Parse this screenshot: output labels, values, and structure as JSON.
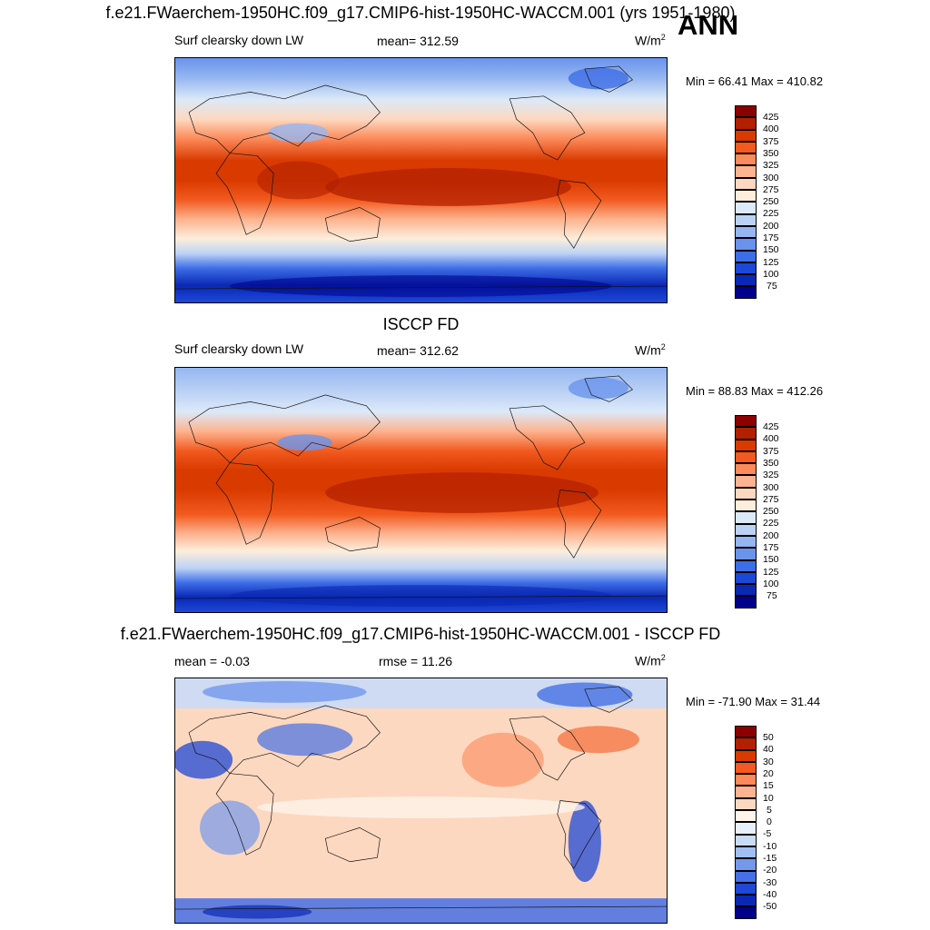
{
  "header": {
    "title": "f.e21.FWaerchem-1950HC.f09_g17.CMIP6-hist-1950HC-WACCM.001 (yrs 1951-1980)",
    "season": "ANN"
  },
  "panels": [
    {
      "title": "",
      "variable": "Surf clearsky down LW",
      "stat": "mean= 312.59",
      "units": "W/m",
      "units_sup": "2",
      "minmax": "Min =  66.41 Max = 410.82",
      "colorbar_labels": [
        "425",
        "400",
        "375",
        "350",
        "325",
        "300",
        "275",
        "250",
        "225",
        "200",
        "175",
        "150",
        "125",
        "100",
        "75"
      ]
    },
    {
      "title": "ISCCP FD",
      "variable": "Surf clearsky down LW",
      "stat": "mean= 312.62",
      "units": "W/m",
      "units_sup": "2",
      "minmax": "Min =  88.83 Max = 412.26",
      "colorbar_labels": [
        "425",
        "400",
        "375",
        "350",
        "325",
        "300",
        "275",
        "250",
        "225",
        "200",
        "175",
        "150",
        "125",
        "100",
        "75"
      ]
    },
    {
      "title": "f.e21.FWaerchem-1950HC.f09_g17.CMIP6-hist-1950HC-WACCM.001 - ISCCP FD",
      "variable": "mean =  -0.03",
      "stat": "rmse =  11.26",
      "units": "W/m",
      "units_sup": "2",
      "minmax": "Min = -71.90 Max =  31.44",
      "colorbar_labels": [
        "50",
        "40",
        "30",
        "20",
        "15",
        "10",
        "5",
        "0",
        "-5",
        "-10",
        "-15",
        "-20",
        "-30",
        "-40",
        "-50"
      ]
    }
  ],
  "colors": {
    "abs_scale": [
      "#8b0000",
      "#b22000",
      "#d93a00",
      "#f25a1f",
      "#fc8a5a",
      "#fdb38f",
      "#fdd8c0",
      "#fdeedc",
      "#dce9f8",
      "#bcd2f5",
      "#95b6f1",
      "#6a93ec",
      "#3e6ee6",
      "#1c48d8",
      "#0a28b4",
      "#00008b"
    ],
    "diff_scale": [
      "#8b0000",
      "#b22000",
      "#d93a00",
      "#f25a1f",
      "#fc8a5a",
      "#fdb38f",
      "#fdd8c0",
      "#fef4ea",
      "#e8f0fb",
      "#c9dcf7",
      "#a1bff2",
      "#7398ec",
      "#4670e4",
      "#1f48d6",
      "#0a28b4",
      "#00008b"
    ]
  },
  "chart_data": [
    {
      "type": "heatmap",
      "title": "Surf clearsky down LW",
      "subtitle": "f.e21.FWaerchem-1950HC.f09_g17.CMIP6-hist-1950HC-WACCM.001 (yrs 1951-1980) ANN",
      "mean": 312.59,
      "min": 66.41,
      "max": 410.82,
      "units": "W/m2",
      "levels": [
        75,
        100,
        125,
        150,
        175,
        200,
        225,
        250,
        275,
        300,
        325,
        350,
        375,
        400,
        425
      ],
      "lat_profile": [
        [
          90,
          150
        ],
        [
          75,
          190
        ],
        [
          60,
          250
        ],
        [
          45,
          280
        ],
        [
          30,
          330
        ],
        [
          15,
          385
        ],
        [
          0,
          400
        ],
        [
          -15,
          385
        ],
        [
          -30,
          330
        ],
        [
          -45,
          285
        ],
        [
          -60,
          225
        ],
        [
          -75,
          110
        ],
        [
          -90,
          75
        ]
      ]
    },
    {
      "type": "heatmap",
      "title": "ISCCP FD",
      "mean": 312.62,
      "min": 88.83,
      "max": 412.26,
      "units": "W/m2",
      "levels": [
        75,
        100,
        125,
        150,
        175,
        200,
        225,
        250,
        275,
        300,
        325,
        350,
        375,
        400,
        425
      ],
      "lat_profile": [
        [
          90,
          160
        ],
        [
          75,
          195
        ],
        [
          60,
          250
        ],
        [
          45,
          280
        ],
        [
          30,
          330
        ],
        [
          15,
          385
        ],
        [
          0,
          400
        ],
        [
          -15,
          385
        ],
        [
          -30,
          330
        ],
        [
          -45,
          280
        ],
        [
          -60,
          225
        ],
        [
          -75,
          120
        ],
        [
          -90,
          90
        ]
      ]
    },
    {
      "type": "heatmap",
      "title": "f.e21.FWaerchem-1950HC.f09_g17.CMIP6-hist-1950HC-WACCM.001 - ISCCP FD",
      "mean": -0.03,
      "rmse": 11.26,
      "min": -71.9,
      "max": 31.44,
      "units": "W/m2",
      "levels": [
        -50,
        -40,
        -30,
        -20,
        -15,
        -10,
        -5,
        0,
        5,
        10,
        15,
        20,
        30,
        40,
        50
      ],
      "lat_profile": [
        [
          90,
          -10
        ],
        [
          75,
          -5
        ],
        [
          60,
          3
        ],
        [
          45,
          8
        ],
        [
          30,
          6
        ],
        [
          15,
          5
        ],
        [
          0,
          2
        ],
        [
          -15,
          7
        ],
        [
          -30,
          5
        ],
        [
          -45,
          7
        ],
        [
          -60,
          4
        ],
        [
          -75,
          -15
        ],
        [
          -90,
          -20
        ]
      ]
    }
  ]
}
